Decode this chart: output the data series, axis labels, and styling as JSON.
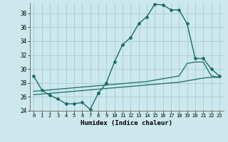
{
  "xlabel": "Humidex (Indice chaleur)",
  "bg_color": "#cce8ec",
  "line_color": "#1a6b6b",
  "grid_color": "#aaccd0",
  "xlim": [
    -0.5,
    23.5
  ],
  "ylim": [
    24,
    39.5
  ],
  "yticks": [
    24,
    26,
    28,
    30,
    32,
    34,
    36,
    38
  ],
  "xticks": [
    0,
    1,
    2,
    3,
    4,
    5,
    6,
    7,
    8,
    9,
    10,
    11,
    12,
    13,
    14,
    15,
    16,
    17,
    18,
    19,
    20,
    21,
    22,
    23
  ],
  "series1_x": [
    0,
    1,
    2,
    3,
    4,
    5,
    6,
    7,
    8
  ],
  "series1_y": [
    29.0,
    27.0,
    26.2,
    25.7,
    25.0,
    25.0,
    25.2,
    24.2,
    26.5
  ],
  "series2_x": [
    8,
    9,
    10,
    11,
    12,
    13,
    14,
    15,
    16,
    17,
    18,
    19,
    20,
    21,
    22,
    23
  ],
  "series2_y": [
    26.5,
    28.0,
    31.0,
    33.5,
    34.5,
    36.5,
    37.5,
    39.3,
    39.2,
    38.5,
    38.5,
    36.5,
    31.5,
    31.5,
    30.0,
    29.0
  ],
  "line3_x": [
    0,
    1,
    2,
    3,
    4,
    5,
    6,
    7,
    8,
    9,
    10,
    11,
    12,
    13,
    14,
    15,
    16,
    17,
    18,
    19,
    20,
    21,
    22,
    23
  ],
  "line3_y": [
    26.8,
    26.9,
    27.0,
    27.1,
    27.2,
    27.3,
    27.4,
    27.5,
    27.6,
    27.7,
    27.8,
    27.9,
    28.0,
    28.1,
    28.2,
    28.4,
    28.6,
    28.8,
    29.0,
    30.8,
    31.0,
    31.0,
    29.0,
    28.8
  ],
  "line4_x": [
    0,
    1,
    2,
    3,
    4,
    5,
    6,
    7,
    8,
    9,
    10,
    11,
    12,
    13,
    14,
    15,
    16,
    17,
    18,
    19,
    20,
    21,
    22,
    23
  ],
  "line4_y": [
    26.3,
    26.4,
    26.5,
    26.6,
    26.7,
    26.8,
    26.9,
    27.0,
    27.1,
    27.2,
    27.3,
    27.4,
    27.5,
    27.6,
    27.7,
    27.8,
    27.9,
    28.0,
    28.1,
    28.3,
    28.5,
    28.7,
    28.8,
    28.8
  ]
}
